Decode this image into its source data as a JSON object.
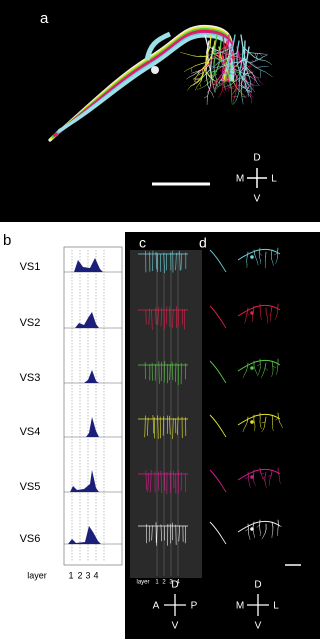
{
  "panel_a": {
    "label": "a",
    "compass": {
      "up": "D",
      "left": "M",
      "right": "L",
      "down": "V"
    }
  },
  "panel_b": {
    "label": "b",
    "rows": [
      "VS1",
      "VS2",
      "VS3",
      "VS4",
      "VS5",
      "VS6"
    ],
    "axis_title": "layer",
    "layers": [
      "1",
      "2",
      "3",
      "4"
    ]
  },
  "panel_c": {
    "label": "c",
    "axis_title": "layer",
    "layers": [
      "1",
      "2",
      "3",
      "4"
    ],
    "compass": {
      "up": "D",
      "left": "A",
      "right": "P",
      "down": "V"
    }
  },
  "panel_d": {
    "label": "d",
    "compass": {
      "up": "D",
      "left": "M",
      "right": "L",
      "down": "V"
    }
  }
}
